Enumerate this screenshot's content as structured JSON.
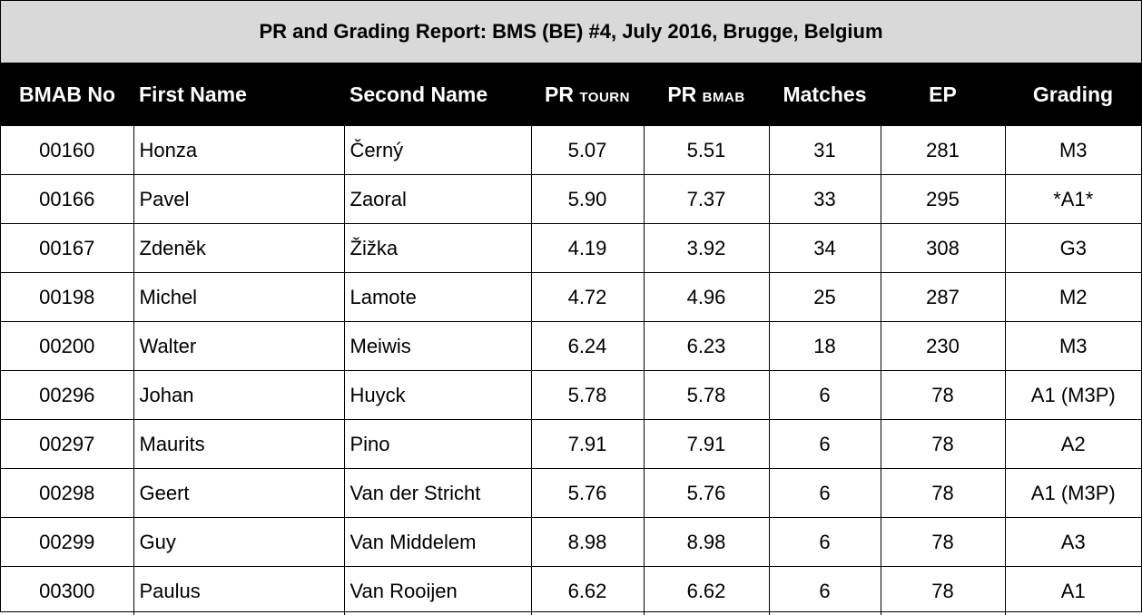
{
  "report": {
    "title": "PR and Grading Report:  BMS (BE) #4, July 2016, Brugge, Belgium",
    "headers": {
      "bmab_no": "BMAB No",
      "first_name": "First Name",
      "second_name": "Second Name",
      "pr_tourn_prefix": "PR",
      "pr_tourn_suffix": "TOURN",
      "pr_bmab_prefix": "PR",
      "pr_bmab_suffix": "BMAB",
      "matches": "Matches",
      "ep": "EP",
      "grading": "Grading"
    },
    "rows": [
      {
        "bmab_no": "00160",
        "first_name": "Honza",
        "second_name": "Černý",
        "pr_tourn": "5.07",
        "pr_bmab": "5.51",
        "matches": "31",
        "ep": "281",
        "grading": "M3"
      },
      {
        "bmab_no": "00166",
        "first_name": "Pavel",
        "second_name": "Zaoral",
        "pr_tourn": "5.90",
        "pr_bmab": "7.37",
        "matches": "33",
        "ep": "295",
        "grading": "*A1*"
      },
      {
        "bmab_no": "00167",
        "first_name": "Zdeněk",
        "second_name": "Žižka",
        "pr_tourn": "4.19",
        "pr_bmab": "3.92",
        "matches": "34",
        "ep": "308",
        "grading": "G3"
      },
      {
        "bmab_no": "00198",
        "first_name": "Michel",
        "second_name": "Lamote",
        "pr_tourn": "4.72",
        "pr_bmab": "4.96",
        "matches": "25",
        "ep": "287",
        "grading": "M2"
      },
      {
        "bmab_no": "00200",
        "first_name": "Walter",
        "second_name": "Meiwis",
        "pr_tourn": "6.24",
        "pr_bmab": "6.23",
        "matches": "18",
        "ep": "230",
        "grading": "M3"
      },
      {
        "bmab_no": "00296",
        "first_name": "Johan",
        "second_name": "Huyck",
        "pr_tourn": "5.78",
        "pr_bmab": "5.78",
        "matches": "6",
        "ep": "78",
        "grading": "A1 (M3P)"
      },
      {
        "bmab_no": "00297",
        "first_name": "Maurits",
        "second_name": "Pino",
        "pr_tourn": "7.91",
        "pr_bmab": "7.91",
        "matches": "6",
        "ep": "78",
        "grading": "A2"
      },
      {
        "bmab_no": "00298",
        "first_name": "Geert",
        "second_name": "Van der Stricht",
        "pr_tourn": "5.76",
        "pr_bmab": "5.76",
        "matches": "6",
        "ep": "78",
        "grading": "A1 (M3P)"
      },
      {
        "bmab_no": "00299",
        "first_name": "Guy",
        "second_name": "Van Middelem",
        "pr_tourn": "8.98",
        "pr_bmab": "8.98",
        "matches": "6",
        "ep": "78",
        "grading": "A3"
      },
      {
        "bmab_no": "00300",
        "first_name": "Paulus",
        "second_name": "Van Rooijen",
        "pr_tourn": "6.62",
        "pr_bmab": "6.62",
        "matches": "6",
        "ep": "78",
        "grading": "A1"
      }
    ]
  }
}
